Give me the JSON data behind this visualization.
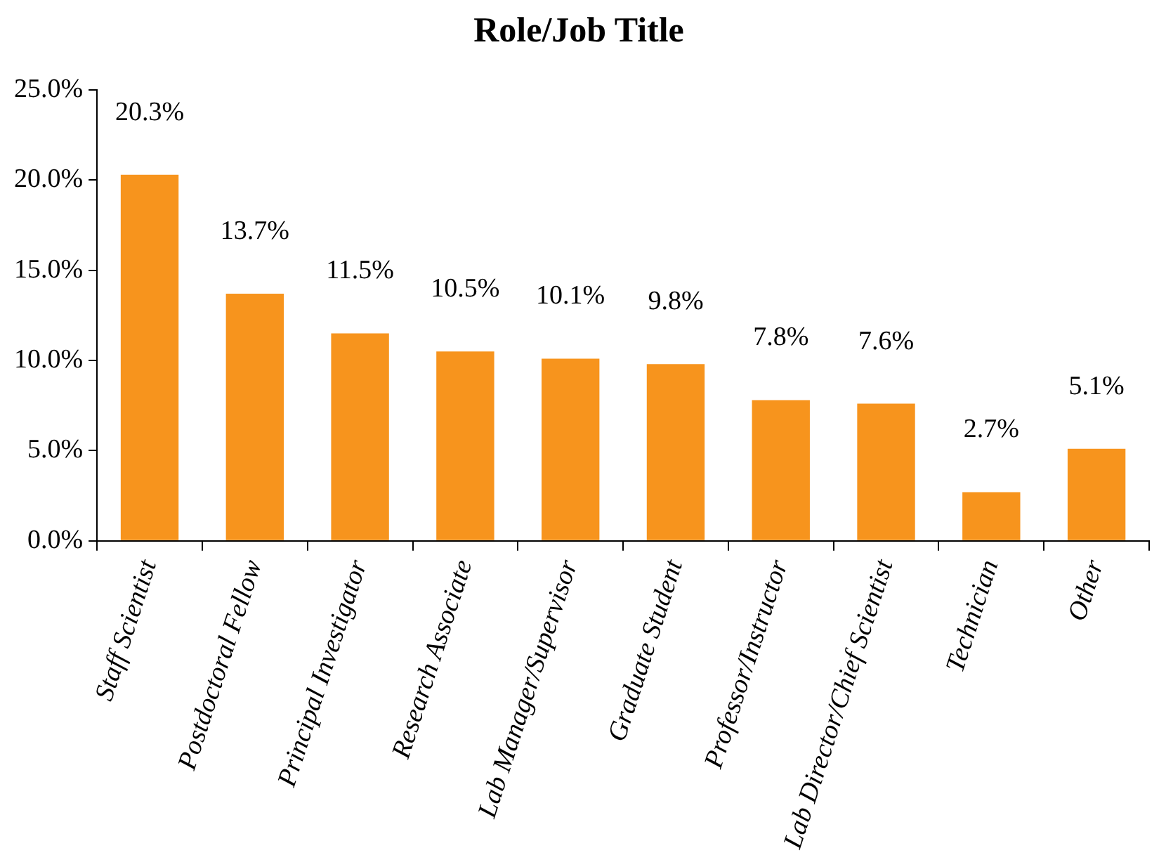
{
  "chart_data": {
    "type": "bar",
    "title": "Role/Job Title",
    "categories": [
      "Staff Scientist",
      "Postdoctoral Fellow",
      "Principal Investigator",
      "Research Associate",
      "Lab Manager/Supervisor",
      "Graduate Student",
      "Professor/Instructor",
      "Lab Director/Chief Scientist",
      "Technician",
      "Other"
    ],
    "values": [
      20.3,
      13.7,
      11.5,
      10.5,
      10.1,
      9.8,
      7.8,
      7.6,
      2.7,
      5.1
    ],
    "value_labels": [
      "20.3%",
      "13.7%",
      "11.5%",
      "10.5%",
      "10.1%",
      "9.8%",
      "7.8%",
      "7.6%",
      "2.7%",
      "5.1%"
    ],
    "color": "#f7941d",
    "ylim": [
      0,
      25
    ],
    "yticks": [
      {
        "value": 0,
        "label": "0.0%"
      },
      {
        "value": 5,
        "label": "5.0%"
      },
      {
        "value": 10,
        "label": "10.0%"
      },
      {
        "value": 15,
        "label": "15.0%"
      },
      {
        "value": 20,
        "label": "20.0%"
      },
      {
        "value": 25,
        "label": "25.0%"
      }
    ],
    "grid": false,
    "legend": false
  }
}
